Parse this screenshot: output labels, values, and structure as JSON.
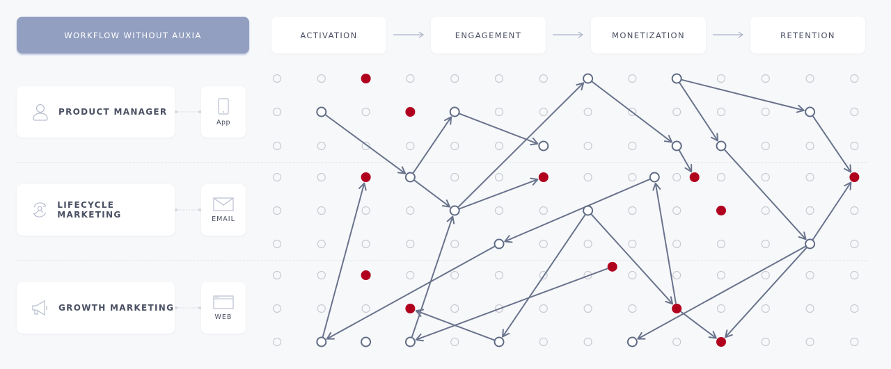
{
  "header": {
    "title": "WORKFLOW WITHOUT AUXIA"
  },
  "stages": [
    {
      "label": "ACTIVATION"
    },
    {
      "label": "ENGAGEMENT"
    },
    {
      "label": "MONETIZATION"
    },
    {
      "label": "RETENTION"
    }
  ],
  "roles": [
    {
      "label": "PRODUCT MANAGER",
      "icon": "user-icon",
      "channel": "App",
      "channel_icon": "phone-icon"
    },
    {
      "label": "LIFECYCLE MARKETING",
      "icon": "user-cycle-icon",
      "channel": "EMAIL",
      "channel_icon": "envelope-icon"
    },
    {
      "label": "GROWTH MARKETING",
      "icon": "megaphone-icon",
      "channel": "WEB",
      "channel_icon": "browser-icon"
    }
  ],
  "colors": {
    "accent": "#929fc0",
    "node": "#5f6b85",
    "edge": "#69738c",
    "highlight": "#b0001e",
    "grid": "#c9cbd3"
  },
  "diagram": {
    "grid": {
      "columns": 14,
      "rows": 9
    },
    "nodes": [
      {
        "col": 1,
        "row": 1,
        "type": "open"
      },
      {
        "col": 3,
        "row": 3,
        "type": "open"
      },
      {
        "col": 4,
        "row": 1,
        "type": "open"
      },
      {
        "col": 6,
        "row": 2,
        "type": "open"
      },
      {
        "col": 4,
        "row": 4,
        "type": "open"
      },
      {
        "col": 6,
        "row": 3,
        "type": "filled"
      },
      {
        "col": 7,
        "row": 0,
        "type": "open"
      },
      {
        "col": 9,
        "row": 2,
        "type": "open"
      },
      {
        "col": 9.4,
        "row": 3,
        "type": "filled"
      },
      {
        "col": 9,
        "row": 0,
        "type": "open"
      },
      {
        "col": 12,
        "row": 1,
        "type": "open"
      },
      {
        "col": 10,
        "row": 2,
        "type": "open"
      },
      {
        "col": 13,
        "row": 3,
        "type": "filled"
      },
      {
        "col": 12,
        "row": 5,
        "type": "open"
      },
      {
        "col": 8,
        "row": 8,
        "type": "open"
      },
      {
        "col": 1,
        "row": 8,
        "type": "open"
      },
      {
        "col": 2,
        "row": 3,
        "type": "filled"
      },
      {
        "col": 8.5,
        "row": 3,
        "type": "open"
      },
      {
        "col": 5,
        "row": 5,
        "type": "open"
      },
      {
        "col": 3,
        "row": 8,
        "type": "open"
      },
      {
        "col": 7,
        "row": 4,
        "type": "open"
      },
      {
        "col": 5,
        "row": 8,
        "type": "open"
      },
      {
        "col": 9,
        "row": 7,
        "type": "filled"
      },
      {
        "col": 10,
        "row": 8,
        "type": "filled"
      },
      {
        "col": 7.55,
        "row": 5.73,
        "type": "filled"
      },
      {
        "col": 3,
        "row": 7,
        "type": "filled"
      },
      {
        "col": 2,
        "row": 0,
        "type": "filled"
      },
      {
        "col": 3,
        "row": 1,
        "type": "filled"
      },
      {
        "col": 10,
        "row": 4,
        "type": "filled"
      },
      {
        "col": 2,
        "row": 6,
        "type": "filled"
      },
      {
        "col": 2,
        "row": 8,
        "type": "open"
      }
    ],
    "edges": [
      [
        0,
        1
      ],
      [
        1,
        2
      ],
      [
        2,
        3
      ],
      [
        1,
        4
      ],
      [
        4,
        5
      ],
      [
        4,
        6
      ],
      [
        6,
        7
      ],
      [
        7,
        8
      ],
      [
        9,
        10
      ],
      [
        9,
        11
      ],
      [
        10,
        12
      ],
      [
        11,
        13
      ],
      [
        13,
        12
      ],
      [
        13,
        14
      ],
      [
        15,
        16
      ],
      [
        17,
        18
      ],
      [
        18,
        15
      ],
      [
        19,
        4
      ],
      [
        20,
        21
      ],
      [
        20,
        22
      ],
      [
        22,
        17
      ],
      [
        22,
        23
      ],
      [
        24,
        19
      ],
      [
        21,
        25
      ],
      [
        13,
        23
      ]
    ]
  }
}
